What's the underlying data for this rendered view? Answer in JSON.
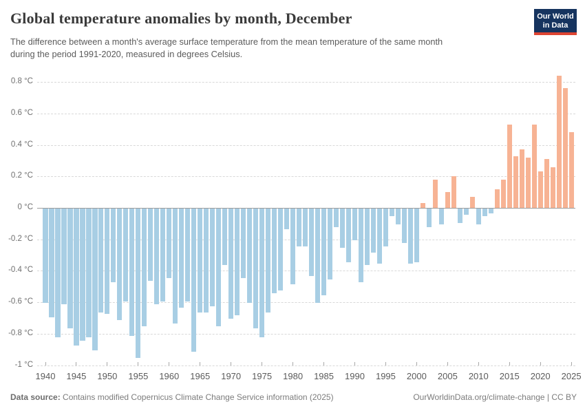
{
  "header": {
    "title": "Global temperature anomalies by month, December",
    "subtitle": "The difference between a month's average surface temperature from the mean temperature of the same month\nduring the period 1991-2020, measured in degrees Celsius.",
    "logo": {
      "line1": "Our World",
      "line2": "in Data",
      "navy": "#16345f",
      "red": "#dd4432"
    }
  },
  "chart_data": {
    "type": "bar",
    "title": "Global temperature anomalies by month, December",
    "unit": "°C",
    "ylim": [
      -1,
      0.9
    ],
    "grid": "horizontal-dashed",
    "legend": "none",
    "positive_color": "#f7b394",
    "negative_color": "#a8cee4",
    "x": [
      1940,
      1941,
      1942,
      1943,
      1944,
      1945,
      1946,
      1947,
      1948,
      1949,
      1950,
      1951,
      1952,
      1953,
      1954,
      1955,
      1956,
      1957,
      1958,
      1959,
      1960,
      1961,
      1962,
      1963,
      1964,
      1965,
      1966,
      1967,
      1968,
      1969,
      1970,
      1971,
      1972,
      1973,
      1974,
      1975,
      1976,
      1977,
      1978,
      1979,
      1980,
      1981,
      1982,
      1983,
      1984,
      1985,
      1986,
      1987,
      1988,
      1989,
      1990,
      1991,
      1992,
      1993,
      1994,
      1995,
      1996,
      1997,
      1998,
      1999,
      2000,
      2001,
      2002,
      2003,
      2004,
      2005,
      2006,
      2007,
      2008,
      2009,
      2010,
      2011,
      2012,
      2013,
      2014,
      2015,
      2016,
      2017,
      2018,
      2019,
      2020,
      2021,
      2022,
      2023,
      2024,
      2025
    ],
    "values": [
      -0.6,
      -0.69,
      -0.82,
      -0.61,
      -0.76,
      -0.87,
      -0.84,
      -0.82,
      -0.9,
      -0.66,
      -0.67,
      -0.47,
      -0.71,
      -0.59,
      -0.81,
      -0.95,
      -0.75,
      -0.46,
      -0.61,
      -0.59,
      -0.44,
      -0.73,
      -0.63,
      -0.59,
      -0.91,
      -0.66,
      -0.66,
      -0.62,
      -0.75,
      -0.36,
      -0.7,
      -0.68,
      -0.44,
      -0.6,
      -0.76,
      -0.82,
      -0.66,
      -0.54,
      -0.52,
      -0.13,
      -0.48,
      -0.24,
      -0.24,
      -0.43,
      -0.6,
      -0.55,
      -0.45,
      -0.12,
      -0.25,
      -0.34,
      -0.2,
      -0.47,
      -0.36,
      -0.28,
      -0.35,
      -0.24,
      -0.05,
      -0.1,
      -0.22,
      -0.35,
      -0.34,
      0.03,
      -0.12,
      0.18,
      -0.1,
      0.1,
      0.2,
      -0.09,
      -0.04,
      0.07,
      -0.1,
      -0.05,
      -0.03,
      0.12,
      0.18,
      0.53,
      0.33,
      0.37,
      0.32,
      0.53,
      0.23,
      0.31,
      0.26,
      0.84,
      0.76,
      0.48
    ],
    "y_gridlines": [
      0.8,
      0.6,
      0.4,
      0.2,
      0,
      -0.2,
      -0.4,
      -0.6,
      -0.8,
      -1
    ],
    "y_tick_labels": [
      "0.8 °C",
      "0.6 °C",
      "0.4 °C",
      "0.2 °C",
      "0 °C",
      "-0.2 °C",
      "-0.4 °C",
      "-0.6 °C",
      "-0.8 °C",
      "-1 °C"
    ],
    "x_tick_labels": [
      1940,
      1945,
      1950,
      1955,
      1960,
      1965,
      1970,
      1975,
      1980,
      1985,
      1990,
      1995,
      2000,
      2005,
      2010,
      2015,
      2020,
      2025
    ]
  },
  "footer": {
    "source_label": "Data source:",
    "source_text": " Contains modified Copernicus Climate Change Service information (2025)",
    "credit": "OurWorldinData.org/climate-change | CC BY"
  }
}
